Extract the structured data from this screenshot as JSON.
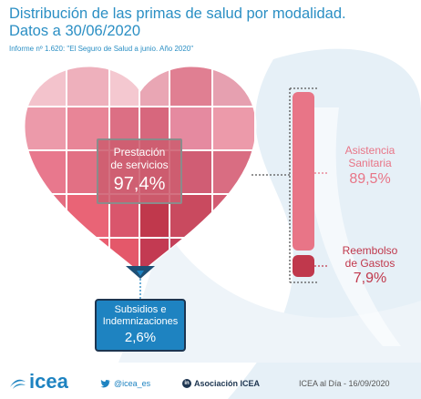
{
  "title_line1": "Distribución de las primas de salud por modalidad.",
  "title_line2": "Datos a 30/06/2020",
  "subtitle": "Informe nº 1.620: \"El Seguro de Salud a junio. Año 2020\"",
  "chart_data": {
    "type": "pie",
    "categories": [
      "Prestación de servicios",
      "Subsidios e Indemnizaciones",
      "Asistencia Sanitaria",
      "Reembolso de Gastos"
    ],
    "segments": [
      {
        "label_line1": "Prestación",
        "label_line2": "de servicios",
        "value": 97.4,
        "value_text": "97,4%",
        "color": "#cd5d6f"
      },
      {
        "label_line1": "Subsidios e",
        "label_line2": "Indemnizaciones",
        "value": 2.6,
        "value_text": "2,6%",
        "color": "#1e83c1"
      }
    ],
    "breakdown": [
      {
        "label_line1": "Asistencia",
        "label_line2": "Sanitaria",
        "value": 89.5,
        "value_text": "89,5%",
        "color": "#e87587"
      },
      {
        "label_line1": "Reembolso",
        "label_line2": "de Gastos",
        "value": 7.9,
        "value_text": "7,9%",
        "color": "#c0384c"
      }
    ]
  },
  "footer": {
    "logo": "icea",
    "twitter": "@icea_es",
    "linkedin": "Asociación ICEA",
    "credit": "ICEA al Día - 16/09/2020"
  },
  "colors": {
    "title": "#2b8fc4",
    "background_shape": "#e6f0f7"
  }
}
